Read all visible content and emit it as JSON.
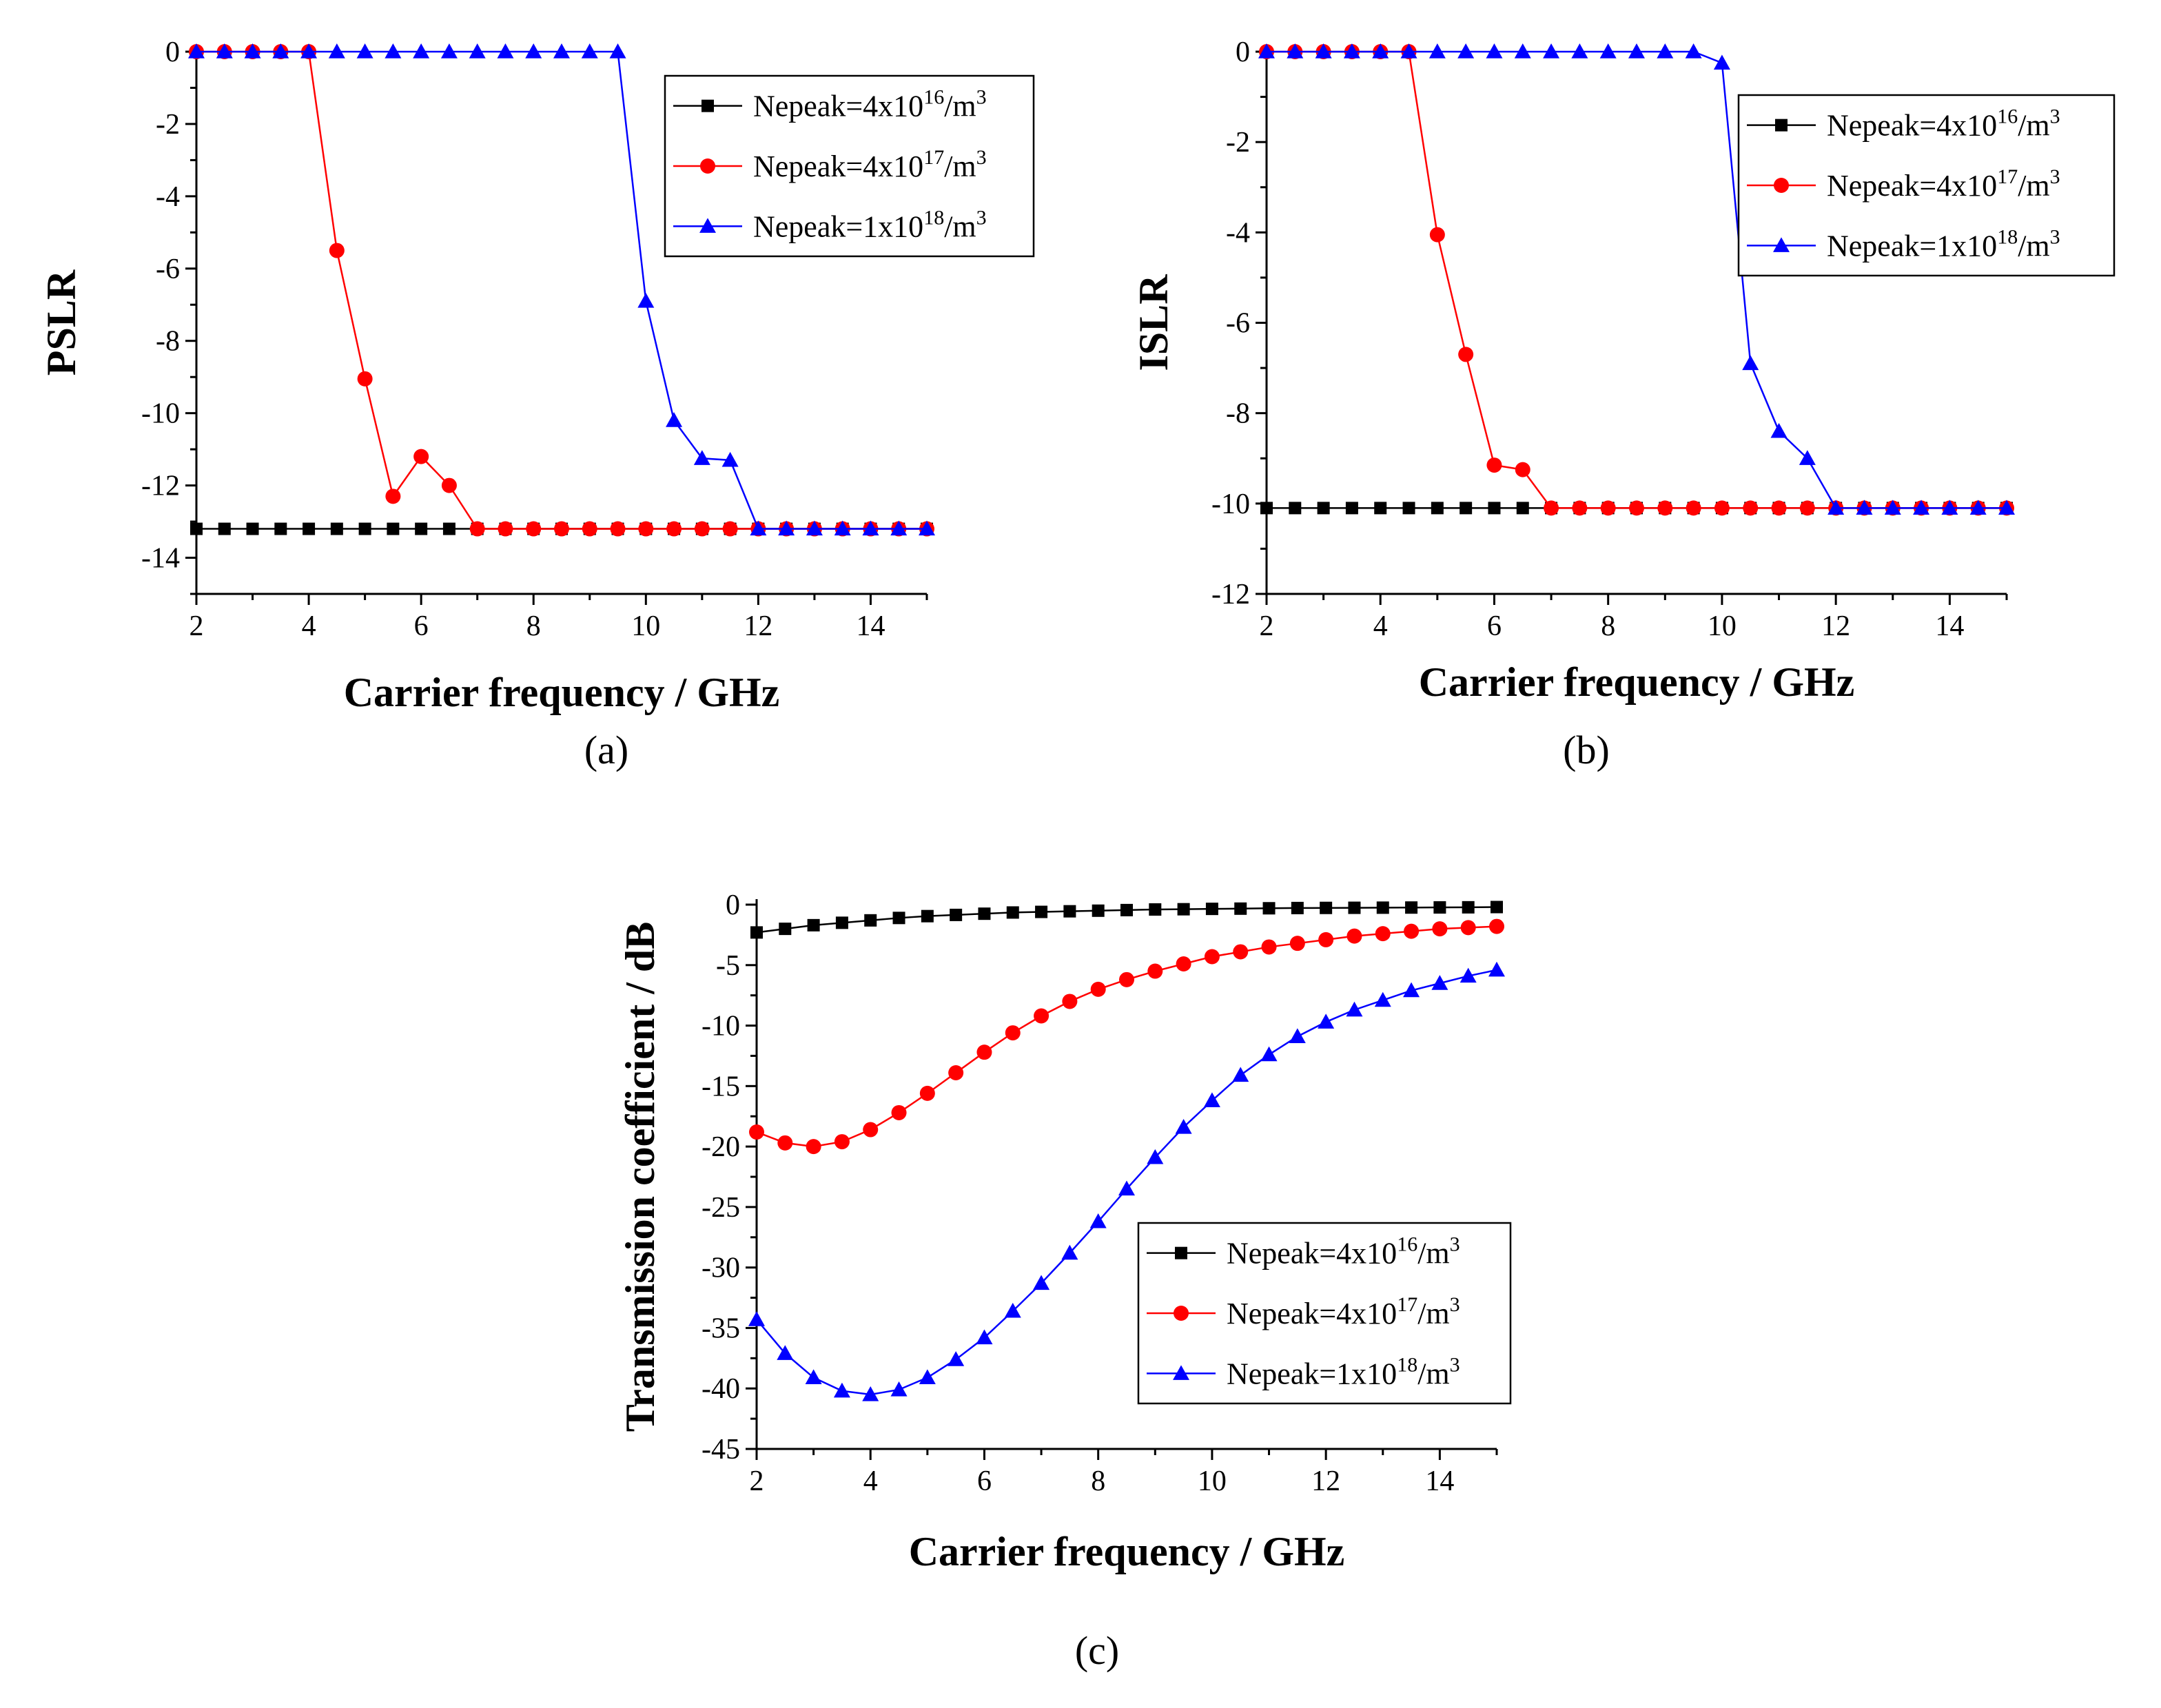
{
  "chart_data": [
    {
      "type": "line",
      "caption": "(a)",
      "xlabel": "Carrier frequency / GHz",
      "ylabel": "PSLR",
      "xlim": [
        2,
        15
      ],
      "ylim": [
        -15,
        0
      ],
      "xticks": [
        2,
        4,
        6,
        8,
        10,
        12,
        14
      ],
      "yticks": [
        0,
        -2,
        -4,
        -6,
        -8,
        -10,
        -12,
        -14
      ],
      "legend_position": "top-right",
      "x": [
        2,
        2.5,
        3,
        3.5,
        4,
        4.5,
        5,
        5.5,
        6,
        6.5,
        7,
        7.5,
        8,
        8.5,
        9,
        9.5,
        10,
        10.5,
        11,
        11.5,
        12,
        12.5,
        13,
        13.5,
        14,
        14.5,
        15
      ],
      "series": [
        {
          "name": "Nepeak=4x10^16/m^3",
          "label_pre": "Nepeak=4x10",
          "exp": "16",
          "label_unit": "/m",
          "unit_exp": "3",
          "color": "#000000",
          "marker": "square",
          "values": [
            -13.2,
            -13.2,
            -13.2,
            -13.2,
            -13.2,
            -13.2,
            -13.2,
            -13.2,
            -13.2,
            -13.2,
            -13.2,
            -13.2,
            -13.2,
            -13.2,
            -13.2,
            -13.2,
            -13.2,
            -13.2,
            -13.2,
            -13.2,
            -13.2,
            -13.2,
            -13.2,
            -13.2,
            -13.2,
            -13.2,
            -13.2
          ]
        },
        {
          "name": "Nepeak=4x10^17/m^3",
          "label_pre": "Nepeak=4x10",
          "exp": "17",
          "label_unit": "/m",
          "unit_exp": "3",
          "color": "#ff0000",
          "marker": "circle",
          "values": [
            0,
            0,
            0,
            0,
            0,
            -5.5,
            -9.05,
            -12.3,
            -11.2,
            -12.0,
            -13.2,
            -13.2,
            -13.2,
            -13.2,
            -13.2,
            -13.2,
            -13.2,
            -13.2,
            -13.2,
            -13.2,
            -13.2,
            -13.2,
            -13.2,
            -13.2,
            -13.2,
            -13.2,
            -13.2
          ]
        },
        {
          "name": "Nepeak=1x10^18/m^3",
          "label_pre": "Nepeak=1x10",
          "exp": "18",
          "label_unit": "/m",
          "unit_exp": "3",
          "color": "#0000ff",
          "marker": "triangle",
          "values": [
            0,
            0,
            0,
            0,
            0,
            0,
            0,
            0,
            0,
            0,
            0,
            0,
            0,
            0,
            0,
            0,
            -6.9,
            -10.2,
            -11.25,
            -11.3,
            -13.2,
            -13.2,
            -13.2,
            -13.2,
            -13.2,
            -13.2,
            -13.2
          ]
        }
      ]
    },
    {
      "type": "line",
      "caption": "(b)",
      "xlabel": "Carrier frequency / GHz",
      "ylabel": "ISLR",
      "xlim": [
        2,
        15
      ],
      "ylim": [
        -12,
        0
      ],
      "xticks": [
        2,
        4,
        6,
        8,
        10,
        12,
        14
      ],
      "yticks": [
        0,
        -2,
        -4,
        -6,
        -8,
        -10,
        -12
      ],
      "legend_position": "top-right",
      "x": [
        2,
        2.5,
        3,
        3.5,
        4,
        4.5,
        5,
        5.5,
        6,
        6.5,
        7,
        7.5,
        8,
        8.5,
        9,
        9.5,
        10,
        10.5,
        11,
        11.5,
        12,
        12.5,
        13,
        13.5,
        14,
        14.5,
        15
      ],
      "series": [
        {
          "name": "Nepeak=4x10^16/m^3",
          "label_pre": "Nepeak=4x10",
          "exp": "16",
          "label_unit": "/m",
          "unit_exp": "3",
          "color": "#000000",
          "marker": "square",
          "values": [
            -10.1,
            -10.1,
            -10.1,
            -10.1,
            -10.1,
            -10.1,
            -10.1,
            -10.1,
            -10.1,
            -10.1,
            -10.1,
            -10.1,
            -10.1,
            -10.1,
            -10.1,
            -10.1,
            -10.1,
            -10.1,
            -10.1,
            -10.1,
            -10.1,
            -10.1,
            -10.1,
            -10.1,
            -10.1,
            -10.1,
            -10.1
          ]
        },
        {
          "name": "Nepeak=4x10^17/m^3",
          "label_pre": "Nepeak=4x10",
          "exp": "17",
          "label_unit": "/m",
          "unit_exp": "3",
          "color": "#ff0000",
          "marker": "circle",
          "values": [
            0,
            0,
            0,
            0,
            0,
            0,
            -4.05,
            -6.7,
            -9.15,
            -9.25,
            -10.1,
            -10.1,
            -10.1,
            -10.1,
            -10.1,
            -10.1,
            -10.1,
            -10.1,
            -10.1,
            -10.1,
            -10.1,
            -10.1,
            -10.1,
            -10.1,
            -10.1,
            -10.1,
            -10.1
          ]
        },
        {
          "name": "Nepeak=1x10^18/m^3",
          "label_pre": "Nepeak=1x10",
          "exp": "18",
          "label_unit": "/m",
          "unit_exp": "3",
          "color": "#0000ff",
          "marker": "triangle",
          "values": [
            0,
            0,
            0,
            0,
            0,
            0,
            0,
            0,
            0,
            0,
            0,
            0,
            0,
            0,
            0,
            0,
            -0.25,
            -6.9,
            -8.4,
            -9.0,
            -10.1,
            -10.1,
            -10.1,
            -10.1,
            -10.1,
            -10.1,
            -10.1
          ]
        }
      ]
    },
    {
      "type": "line",
      "caption": "(c)",
      "xlabel": "Carrier frequency / GHz",
      "ylabel": "Transmission coefficient  / dB",
      "xlim": [
        2,
        15
      ],
      "ylim": [
        -45,
        0
      ],
      "xticks": [
        2,
        4,
        6,
        8,
        10,
        12,
        14
      ],
      "yticks": [
        0,
        -5,
        -10,
        -15,
        -20,
        -25,
        -30,
        -35,
        -40,
        -45
      ],
      "legend_position": "bottom-right",
      "x": [
        2,
        2.5,
        3,
        3.5,
        4,
        4.5,
        5,
        5.5,
        6,
        6.5,
        7,
        7.5,
        8,
        8.5,
        9,
        9.5,
        10,
        10.5,
        11,
        11.5,
        12,
        12.5,
        13,
        13.5,
        14,
        14.5,
        15
      ],
      "series": [
        {
          "name": "Nepeak=4x10^16/m^3",
          "label_pre": "Nepeak=4x10",
          "exp": "16",
          "label_unit": "/m",
          "unit_exp": "3",
          "color": "#000000",
          "marker": "square",
          "values": [
            -2.3,
            -2.0,
            -1.7,
            -1.5,
            -1.3,
            -1.1,
            -0.95,
            -0.85,
            -0.75,
            -0.65,
            -0.6,
            -0.55,
            -0.5,
            -0.45,
            -0.4,
            -0.38,
            -0.35,
            -0.33,
            -0.3,
            -0.28,
            -0.27,
            -0.26,
            -0.25,
            -0.24,
            -0.23,
            -0.22,
            -0.2
          ]
        },
        {
          "name": "Nepeak=4x10^17/m^3",
          "label_pre": "Nepeak=4x10",
          "exp": "17",
          "label_unit": "/m",
          "unit_exp": "3",
          "color": "#ff0000",
          "marker": "circle",
          "values": [
            -18.8,
            -19.7,
            -20.0,
            -19.6,
            -18.6,
            -17.2,
            -15.6,
            -13.9,
            -12.2,
            -10.6,
            -9.2,
            -8.0,
            -7.0,
            -6.2,
            -5.5,
            -4.9,
            -4.3,
            -3.9,
            -3.5,
            -3.2,
            -2.9,
            -2.6,
            -2.4,
            -2.2,
            -2.0,
            -1.9,
            -1.8
          ]
        },
        {
          "name": "Nepeak=1x10^18/m^3",
          "label_pre": "Nepeak=1x10",
          "exp": "18",
          "label_unit": "/m",
          "unit_exp": "3",
          "color": "#0000ff",
          "marker": "triangle",
          "values": [
            -34.3,
            -37.1,
            -39.1,
            -40.2,
            -40.5,
            -40.1,
            -39.1,
            -37.6,
            -35.8,
            -33.6,
            -31.3,
            -28.8,
            -26.2,
            -23.5,
            -20.9,
            -18.4,
            -16.2,
            -14.1,
            -12.4,
            -10.9,
            -9.7,
            -8.7,
            -7.9,
            -7.1,
            -6.5,
            -5.9,
            -5.4
          ]
        }
      ]
    }
  ]
}
